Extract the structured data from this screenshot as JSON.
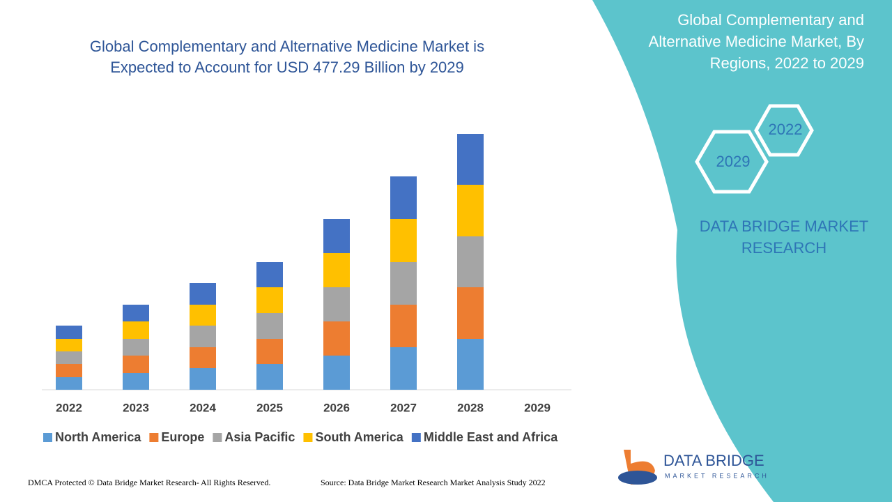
{
  "chart_data": {
    "type": "stacked_bar",
    "title": "Global Complementary and Alternative Medicine Market is Expected to Account for USD 477.29 Billion by 2029",
    "categories": [
      "2022",
      "2023",
      "2024",
      "2025",
      "2026",
      "2027",
      "2028",
      "2029"
    ],
    "series": [
      {
        "name": "North America",
        "color": "#5b9bd5",
        "values": [
          18,
          24,
          31,
          37,
          49,
          61,
          73,
          null
        ]
      },
      {
        "name": "Europe",
        "color": "#ed7d31",
        "values": [
          19,
          25,
          30,
          36,
          49,
          61,
          74,
          null
        ]
      },
      {
        "name": "Asia Pacific",
        "color": "#a5a5a5",
        "values": [
          18,
          24,
          31,
          37,
          49,
          61,
          73,
          null
        ]
      },
      {
        "name": "South America",
        "color": "#ffc000",
        "values": [
          18,
          25,
          30,
          37,
          49,
          62,
          74,
          null
        ]
      },
      {
        "name": "Middle East and Africa",
        "color": "#4472c4",
        "values": [
          19,
          24,
          31,
          36,
          49,
          61,
          73,
          null
        ]
      }
    ]
  },
  "side_panel": {
    "title": "Global Complementary and Alternative Medicine Market, By Regions, 2022 to 2029",
    "hexagon_start": "2022",
    "hexagon_end": "2029",
    "brand": "DATA BRIDGE MARKET RESEARCH"
  },
  "logo": {
    "name": "DATA BRIDGE",
    "tagline": "MARKET RESEARCH"
  },
  "footer": {
    "copyright": "DMCA Protected © Data Bridge Market Research- All Rights Reserved.",
    "source": "Source: Data Bridge Market Research Market Analysis Study 2022"
  }
}
